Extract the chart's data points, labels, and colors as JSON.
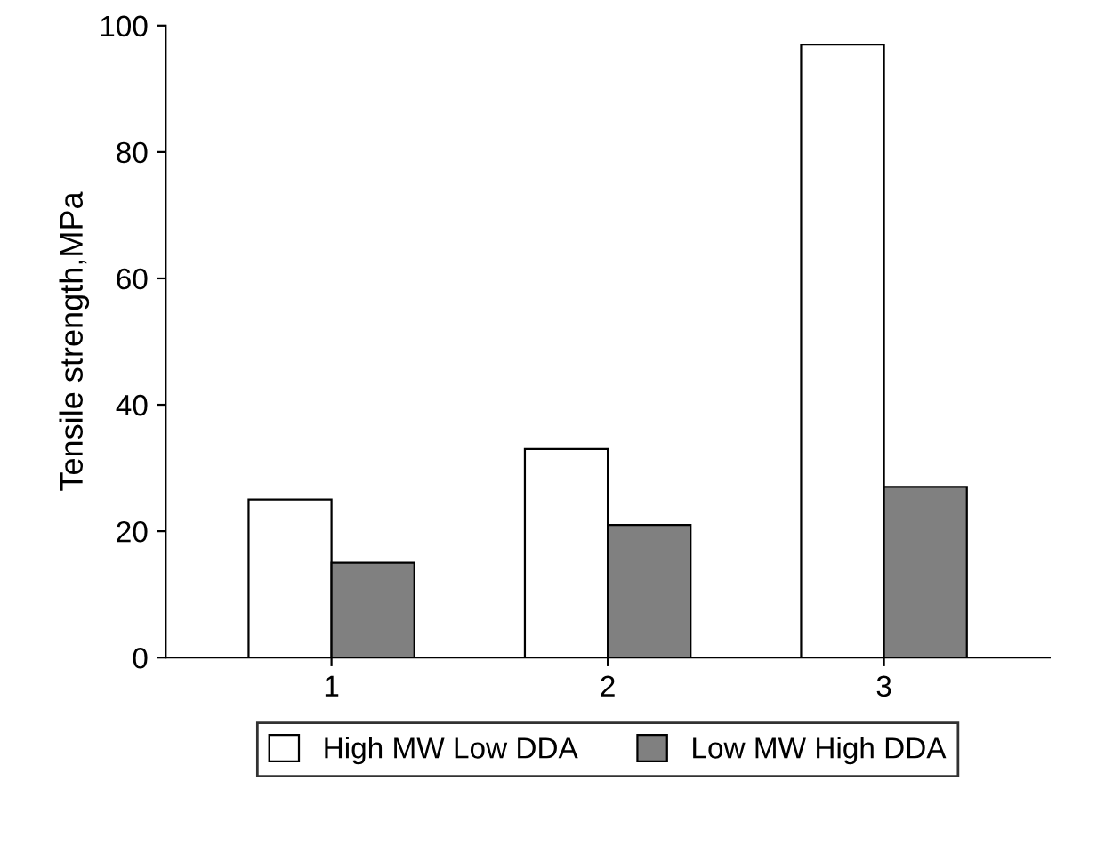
{
  "chart_data": {
    "type": "bar",
    "ylabel": "Tensile strength,MPa",
    "categories": [
      "1",
      "2",
      "3"
    ],
    "series": [
      {
        "name": "High MW Low DDA",
        "color": "#ffffff",
        "values": [
          25,
          33,
          97
        ]
      },
      {
        "name": "Low MW High DDA",
        "color": "#808080",
        "values": [
          15,
          21,
          27
        ]
      }
    ],
    "ylim": [
      0,
      100
    ],
    "yticks": [
      0,
      20,
      40,
      60,
      80,
      100
    ],
    "grid": false,
    "legend": "bottom"
  }
}
